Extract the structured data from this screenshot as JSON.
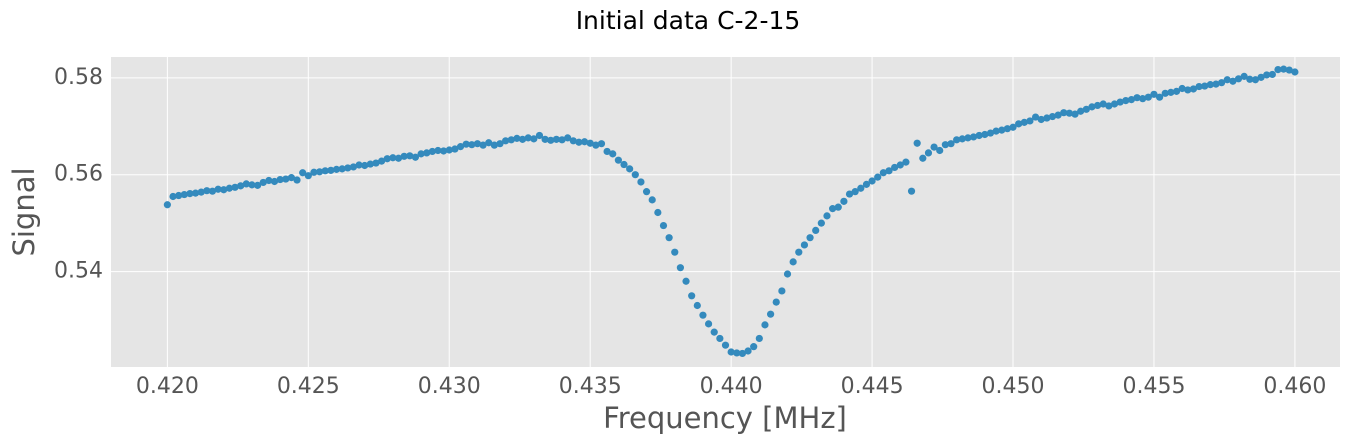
{
  "chart_data": {
    "type": "scatter",
    "title": "Initial data C-2-15",
    "xlabel": "Frequency [MHz]",
    "ylabel": "Signal",
    "color": "#348abd",
    "grid": true,
    "xlim": [
      0.418,
      0.4616
    ],
    "ylim": [
      0.5203,
      0.5843
    ],
    "xticks": [
      {
        "value": 0.42,
        "label": "0.420"
      },
      {
        "value": 0.425,
        "label": "0.425"
      },
      {
        "value": 0.43,
        "label": "0.430"
      },
      {
        "value": 0.435,
        "label": "0.435"
      },
      {
        "value": 0.44,
        "label": "0.440"
      },
      {
        "value": 0.445,
        "label": "0.445"
      },
      {
        "value": 0.45,
        "label": "0.450"
      },
      {
        "value": 0.455,
        "label": "0.455"
      },
      {
        "value": 0.46,
        "label": "0.460"
      }
    ],
    "yticks": [
      0.54,
      0.56,
      0.58
    ],
    "x": [
      0.42,
      0.4202,
      0.4204,
      0.4206,
      0.4208,
      0.421,
      0.4212,
      0.4214,
      0.4216,
      0.4218,
      0.422,
      0.4222,
      0.4224,
      0.4226,
      0.4228,
      0.423,
      0.4232,
      0.4234,
      0.4236,
      0.4238,
      0.424,
      0.4242,
      0.4244,
      0.4246,
      0.4248,
      0.425,
      0.4252,
      0.4254,
      0.4256,
      0.4258,
      0.426,
      0.4262,
      0.4264,
      0.4266,
      0.4268,
      0.427,
      0.4272,
      0.4274,
      0.4276,
      0.4278,
      0.428,
      0.4282,
      0.4284,
      0.4286,
      0.4288,
      0.429,
      0.4292,
      0.4294,
      0.4296,
      0.4298,
      0.43,
      0.4302,
      0.4304,
      0.4306,
      0.4308,
      0.431,
      0.4312,
      0.4314,
      0.4316,
      0.4318,
      0.432,
      0.4322,
      0.4324,
      0.4326,
      0.4328,
      0.433,
      0.4332,
      0.4334,
      0.4336,
      0.4338,
      0.434,
      0.4342,
      0.4344,
      0.4346,
      0.4348,
      0.435,
      0.4352,
      0.4354,
      0.4356,
      0.4358,
      0.436,
      0.4362,
      0.4364,
      0.4366,
      0.4368,
      0.437,
      0.4372,
      0.4374,
      0.4376,
      0.4378,
      0.438,
      0.4382,
      0.4384,
      0.4386,
      0.4388,
      0.439,
      0.4392,
      0.4394,
      0.4396,
      0.4398,
      0.44,
      0.4402,
      0.4404,
      0.4406,
      0.4408,
      0.441,
      0.4412,
      0.4414,
      0.4416,
      0.4418,
      0.442,
      0.4422,
      0.4424,
      0.4426,
      0.4428,
      0.443,
      0.4432,
      0.4434,
      0.4436,
      0.4438,
      0.444,
      0.4442,
      0.4444,
      0.4446,
      0.4448,
      0.445,
      0.4452,
      0.4454,
      0.4456,
      0.4458,
      0.446,
      0.4462,
      0.4464,
      0.4466,
      0.4468,
      0.447,
      0.4472,
      0.4474,
      0.4476,
      0.4478,
      0.448,
      0.4482,
      0.4484,
      0.4486,
      0.4488,
      0.449,
      0.4492,
      0.4494,
      0.4496,
      0.4498,
      0.45,
      0.4502,
      0.4504,
      0.4506,
      0.4508,
      0.451,
      0.4512,
      0.4514,
      0.4516,
      0.4518,
      0.452,
      0.4522,
      0.4524,
      0.4526,
      0.4528,
      0.453,
      0.4532,
      0.4534,
      0.4536,
      0.4538,
      0.454,
      0.4542,
      0.4544,
      0.4546,
      0.4548,
      0.455,
      0.4552,
      0.4554,
      0.4556,
      0.4558,
      0.456,
      0.4562,
      0.4564,
      0.4566,
      0.4568,
      0.457,
      0.4572,
      0.4574,
      0.4576,
      0.4578,
      0.458,
      0.4582,
      0.4584,
      0.4586,
      0.4588,
      0.459,
      0.4592,
      0.4594,
      0.4596,
      0.4598,
      0.46
    ],
    "values": [
      0.5538,
      0.5555,
      0.5557,
      0.5559,
      0.5561,
      0.5562,
      0.5564,
      0.5567,
      0.5566,
      0.557,
      0.5569,
      0.5572,
      0.5574,
      0.5577,
      0.5581,
      0.5579,
      0.5578,
      0.5584,
      0.5588,
      0.5586,
      0.559,
      0.5591,
      0.5594,
      0.5589,
      0.5604,
      0.5598,
      0.5605,
      0.5606,
      0.5608,
      0.5609,
      0.5611,
      0.5612,
      0.5614,
      0.5616,
      0.562,
      0.5619,
      0.5622,
      0.5624,
      0.5628,
      0.5633,
      0.5635,
      0.5634,
      0.5638,
      0.5639,
      0.5636,
      0.5643,
      0.5645,
      0.5648,
      0.565,
      0.5649,
      0.5651,
      0.5653,
      0.5658,
      0.5663,
      0.5662,
      0.5664,
      0.5661,
      0.5666,
      0.5661,
      0.5664,
      0.567,
      0.5672,
      0.5675,
      0.5673,
      0.5676,
      0.5674,
      0.5681,
      0.5673,
      0.5671,
      0.5673,
      0.5672,
      0.5676,
      0.567,
      0.5667,
      0.5668,
      0.5665,
      0.5661,
      0.5664,
      0.5648,
      0.5643,
      0.563,
      0.5621,
      0.5612,
      0.56,
      0.5585,
      0.5565,
      0.5548,
      0.5522,
      0.5495,
      0.547,
      0.544,
      0.5408,
      0.538,
      0.535,
      0.533,
      0.531,
      0.5292,
      0.5275,
      0.5262,
      0.5248,
      0.5234,
      0.5232,
      0.5231,
      0.5236,
      0.5245,
      0.5262,
      0.529,
      0.5312,
      0.5337,
      0.536,
      0.5395,
      0.542,
      0.544,
      0.5455,
      0.547,
      0.5485,
      0.55,
      0.5515,
      0.553,
      0.5533,
      0.5545,
      0.556,
      0.5565,
      0.5572,
      0.558,
      0.5587,
      0.5595,
      0.5604,
      0.5608,
      0.5615,
      0.562,
      0.5626,
      0.5566,
      0.5665,
      0.5634,
      0.5645,
      0.5657,
      0.565,
      0.5662,
      0.5664,
      0.5672,
      0.5674,
      0.5676,
      0.5678,
      0.5681,
      0.5683,
      0.5686,
      0.569,
      0.5692,
      0.5695,
      0.5698,
      0.5705,
      0.5708,
      0.5711,
      0.5719,
      0.5714,
      0.5717,
      0.572,
      0.5723,
      0.5728,
      0.5727,
      0.5725,
      0.5731,
      0.5735,
      0.574,
      0.5743,
      0.5746,
      0.5742,
      0.5746,
      0.575,
      0.5753,
      0.5755,
      0.5759,
      0.5757,
      0.576,
      0.5766,
      0.576,
      0.5768,
      0.577,
      0.5772,
      0.5778,
      0.5775,
      0.5777,
      0.5782,
      0.5783,
      0.5786,
      0.5787,
      0.579,
      0.5796,
      0.5793,
      0.5798,
      0.5803,
      0.5797,
      0.5796,
      0.5801,
      0.5806,
      0.5807,
      0.5817,
      0.5818,
      0.5816,
      0.5812
    ]
  }
}
